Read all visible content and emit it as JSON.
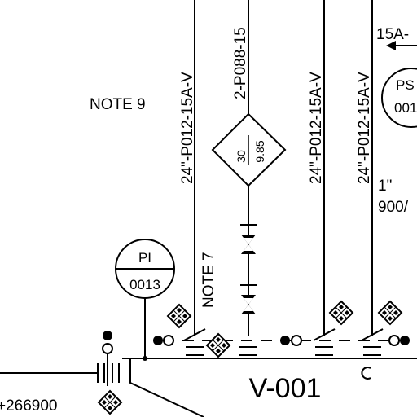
{
  "notes": {
    "note9": "NOTE 9",
    "note7": "NOTE 7"
  },
  "lines": {
    "line1": "24\"-P012-15A-V",
    "line2": "2-P088-15",
    "line3": "24\"-P012-15A-V",
    "line4": "24\"-P012-15A-V",
    "top_right": "15A-",
    "size_1": "1\"",
    "size_900": "900/"
  },
  "diamond": {
    "top": "30",
    "bottom": "9.85"
  },
  "pi": {
    "tag": "PI",
    "number": "0013"
  },
  "ps": {
    "tag": "PS",
    "number": "001"
  },
  "vessel": {
    "label": "V-001"
  },
  "elevation": "+266900",
  "colors": {
    "ink": "#000000",
    "paper": "#ffffff"
  }
}
